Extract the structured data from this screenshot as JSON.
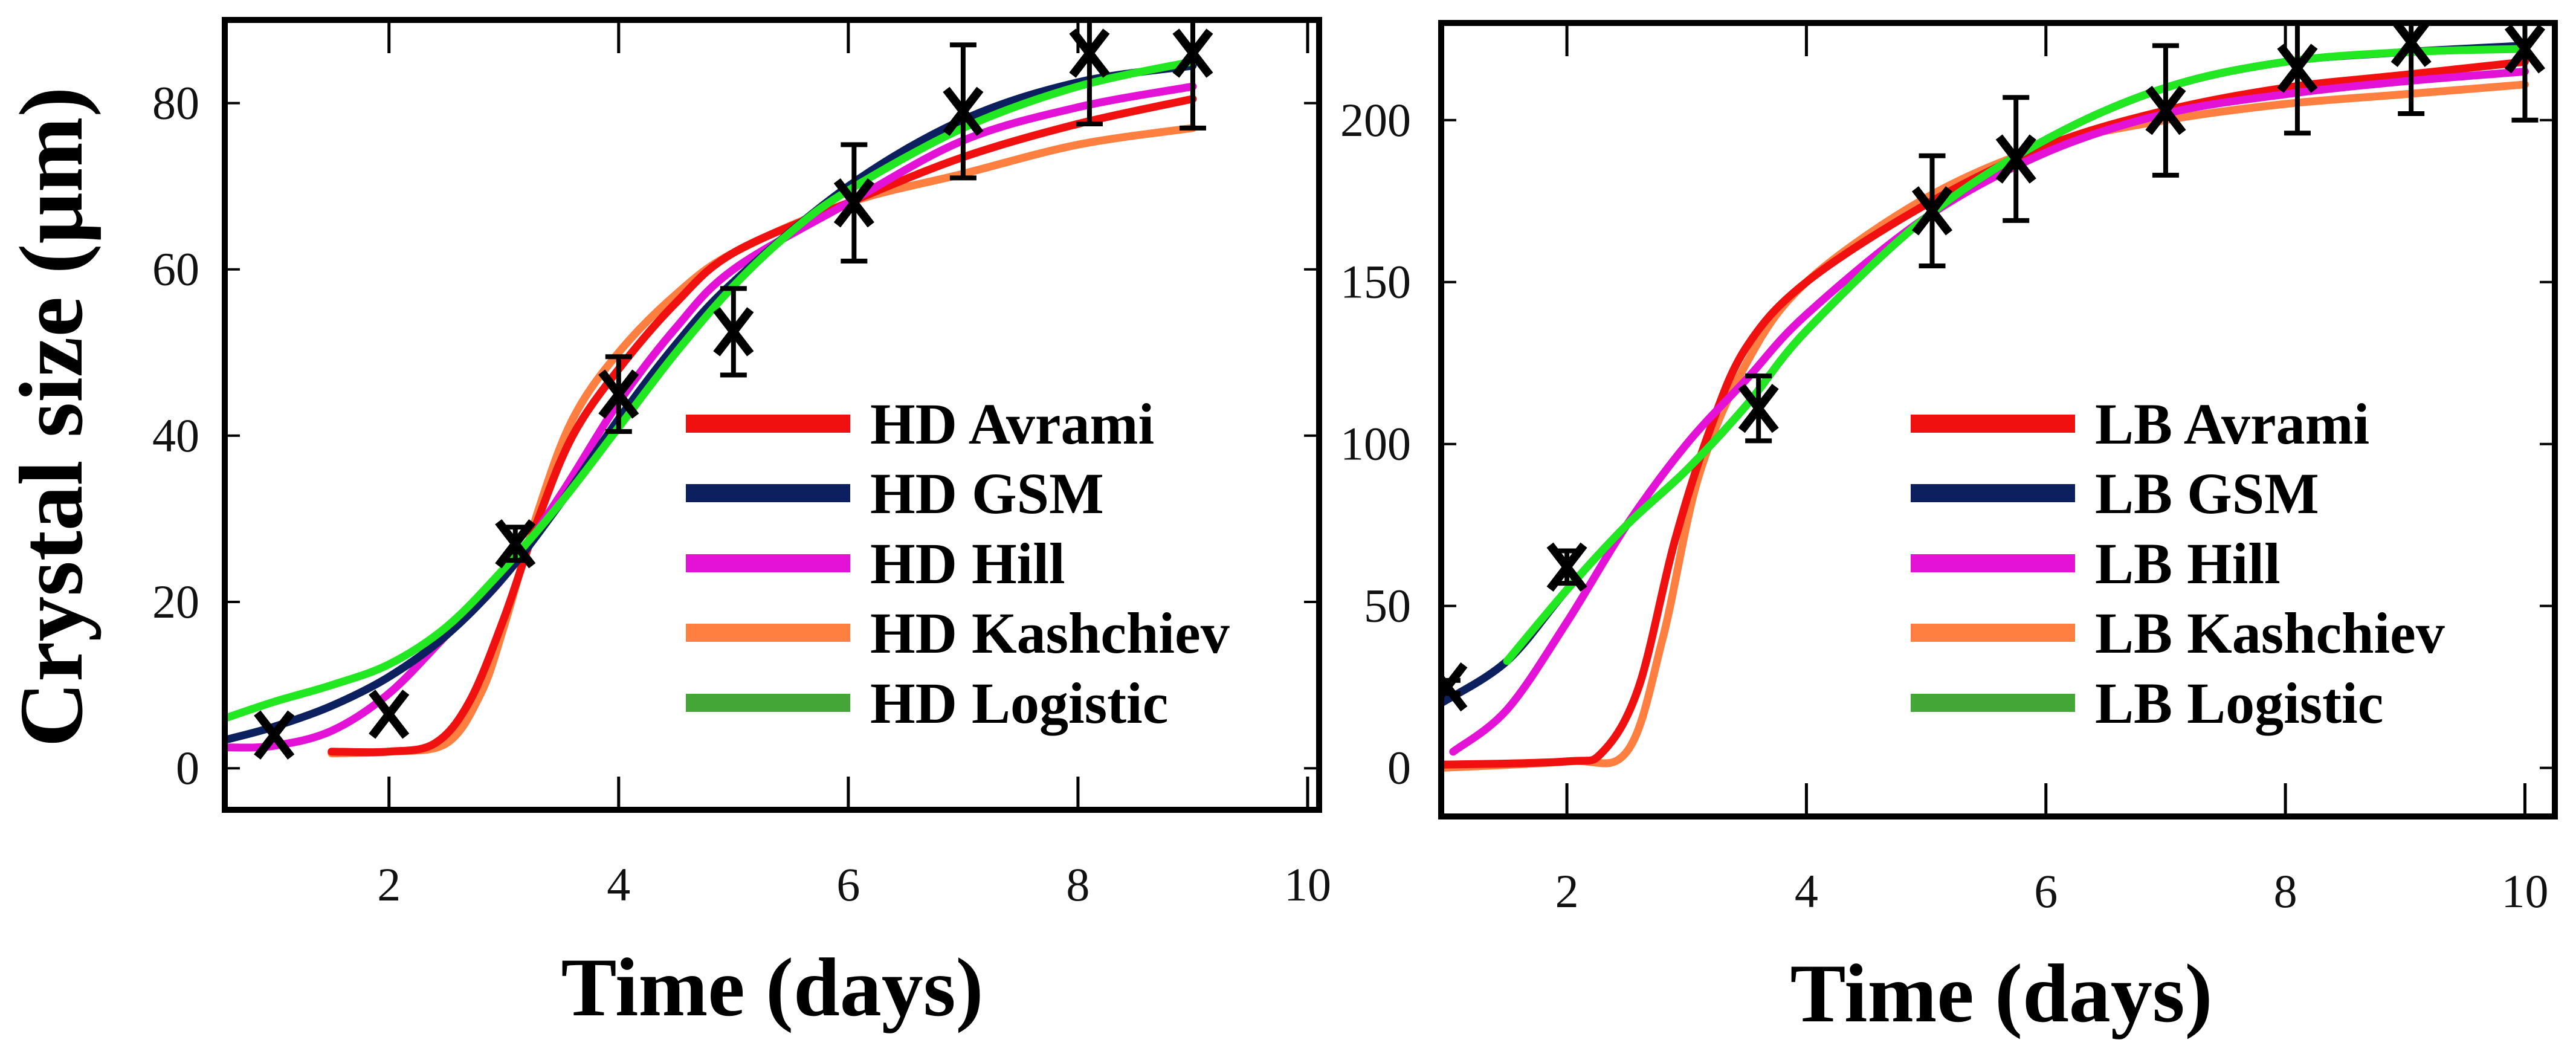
{
  "chart_data": [
    {
      "type": "line",
      "panel": "left",
      "title": "",
      "xlabel": "Time (days)",
      "ylabel": "Crystal size (μm)",
      "xlim": [
        0.57,
        10.1
      ],
      "ylim": [
        -5,
        90
      ],
      "xticks": [
        2,
        4,
        6,
        8,
        10
      ],
      "yticks": [
        0,
        20,
        40,
        60,
        80
      ],
      "grid": false,
      "legend_position": "bottom-right",
      "measured": {
        "x": [
          1,
          2,
          3.1,
          4,
          5,
          6.05,
          7,
          8.1,
          9
        ],
        "y": [
          4,
          6.5,
          27,
          45,
          52.5,
          68,
          79,
          86,
          86
        ],
        "err": [
          0,
          0,
          2,
          4.5,
          5.2,
          7,
          8,
          8.5,
          9
        ]
      },
      "series": [
        {
          "name": "HD Avrami",
          "color": "#f01010",
          "x": [
            1.5,
            2,
            2.4,
            2.7,
            3,
            3.3,
            3.6,
            4,
            4.5,
            5,
            6,
            7,
            8,
            9
          ],
          "y": [
            2,
            2,
            3,
            8,
            18,
            30,
            40,
            48,
            56,
            62,
            68,
            73.5,
            77.5,
            80.5
          ]
        },
        {
          "name": "HD GSM",
          "color": "#0c1f5e",
          "x": [
            0.6,
            1,
            1.5,
            2,
            2.5,
            3,
            3.5,
            4,
            4.5,
            5,
            6,
            7,
            8,
            9
          ],
          "y": [
            3.5,
            5,
            7.5,
            11,
            16,
            23,
            32,
            42,
            51,
            58.5,
            70,
            78,
            82.5,
            84.5
          ]
        },
        {
          "name": "HD Hill",
          "color": "#e312d6",
          "x": [
            0.6,
            1,
            1.5,
            2,
            2.5,
            3,
            3.5,
            4,
            4.5,
            5,
            6,
            7,
            8,
            9
          ],
          "y": [
            2.5,
            2.7,
            4.5,
            9,
            16,
            23,
            33,
            44,
            53,
            60,
            68,
            75.5,
            79.5,
            82
          ]
        },
        {
          "name": "HD Kashchiev",
          "color": "#ff7f40",
          "x": [
            1.5,
            2,
            2.5,
            2.8,
            3,
            3.3,
            3.6,
            4,
            4.5,
            5,
            6,
            7,
            8,
            9
          ],
          "y": [
            1.8,
            2,
            3,
            9,
            17,
            31,
            42,
            50,
            57,
            62,
            68,
            71.5,
            75,
            77
          ]
        },
        {
          "name": "HD Logistic",
          "color": "#22e822",
          "legend_color": "#44a636",
          "x": [
            0.57,
            1,
            1.5,
            2,
            2.5,
            3,
            3.5,
            4,
            4.5,
            5,
            5.5,
            6,
            7,
            8,
            9
          ],
          "y": [
            6,
            8,
            10,
            12.5,
            17,
            24,
            32,
            41,
            50,
            58,
            64.5,
            69.5,
            77,
            82,
            85
          ]
        }
      ]
    },
    {
      "type": "line",
      "panel": "right",
      "title": "",
      "xlabel": "Time (days)",
      "ylabel": "",
      "xlim": [
        0.95,
        10.25
      ],
      "ylim": [
        -15,
        230
      ],
      "xticks": [
        2,
        4,
        6,
        8,
        10
      ],
      "yticks": [
        0,
        50,
        100,
        150,
        200
      ],
      "grid": false,
      "legend_position": "bottom-right",
      "measured": {
        "x": [
          1,
          2,
          3.6,
          5.05,
          5.75,
          7,
          8.1,
          9.05,
          10
        ],
        "y": [
          25,
          62,
          111,
          172,
          188,
          203,
          216,
          224,
          222
        ],
        "err": [
          2,
          5,
          10,
          17,
          19,
          20,
          20,
          22,
          22
        ]
      },
      "series": [
        {
          "name": "LB Avrami",
          "color": "#f01010",
          "x": [
            0.95,
            2,
            2.3,
            2.6,
            2.9,
            3.2,
            3.5,
            4,
            5,
            6,
            7,
            8,
            9,
            10
          ],
          "y": [
            1,
            2,
            5,
            25,
            70,
            105,
            130,
            150,
            174,
            192,
            203,
            210,
            214,
            218
          ]
        },
        {
          "name": "LB GSM",
          "color": "#0c1f5e",
          "x": [
            0.95,
            1.5,
            2,
            2.5,
            3,
            3.5,
            4,
            5,
            6,
            7,
            8,
            9,
            10
          ],
          "y": [
            20,
            33,
            55,
            75,
            92,
            112,
            135,
            170,
            194,
            210,
            218,
            221,
            223
          ]
        },
        {
          "name": "LB Hill",
          "color": "#e312d6",
          "x": [
            1.05,
            1.5,
            2,
            2.5,
            3,
            3.5,
            4,
            5,
            6,
            7,
            8,
            9,
            10
          ],
          "y": [
            5,
            18,
            45,
            75,
            100,
            120,
            140,
            170,
            190,
            202,
            208,
            212,
            215
          ]
        },
        {
          "name": "LB Kashchiev",
          "color": "#ff7f40",
          "x": [
            0.95,
            2,
            2.5,
            2.8,
            3.1,
            3.5,
            4,
            5,
            6,
            7,
            8,
            9,
            10
          ],
          "y": [
            0,
            2,
            5,
            40,
            90,
            125,
            150,
            176,
            192,
            200,
            205,
            208,
            211
          ]
        },
        {
          "name": "LB Logistic",
          "color": "#22e822",
          "legend_color": "#44a636",
          "x": [
            1.5,
            2,
            2.5,
            3,
            3.5,
            4,
            5,
            6,
            7,
            8,
            9,
            10
          ],
          "y": [
            33,
            55,
            75,
            92,
            112,
            135,
            170,
            194,
            210,
            218,
            221,
            222
          ]
        }
      ]
    }
  ]
}
